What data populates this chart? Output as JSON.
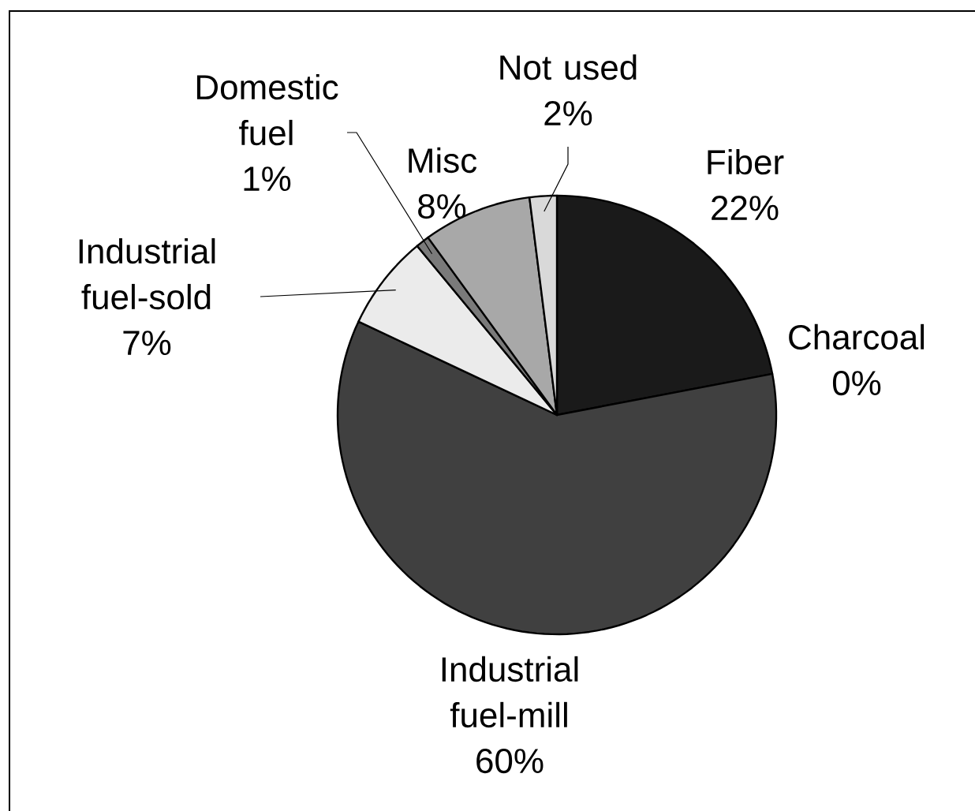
{
  "chart_data": {
    "type": "pie",
    "categories": [
      "Fiber",
      "Charcoal",
      "Industrial fuel-mill",
      "Industrial fuel-sold",
      "Domestic fuel",
      "Misc",
      "Not used"
    ],
    "values": [
      22,
      0,
      60,
      7,
      1,
      8,
      2
    ],
    "value_labels": [
      "22%",
      "0%",
      "60%",
      "7%",
      "1%",
      "8%",
      "2%"
    ],
    "colors": [
      "#1a1a1a",
      "#333333",
      "#404040",
      "#ebebeb",
      "#7a7a7a",
      "#a8a8a8",
      "#d9d9d9"
    ]
  }
}
